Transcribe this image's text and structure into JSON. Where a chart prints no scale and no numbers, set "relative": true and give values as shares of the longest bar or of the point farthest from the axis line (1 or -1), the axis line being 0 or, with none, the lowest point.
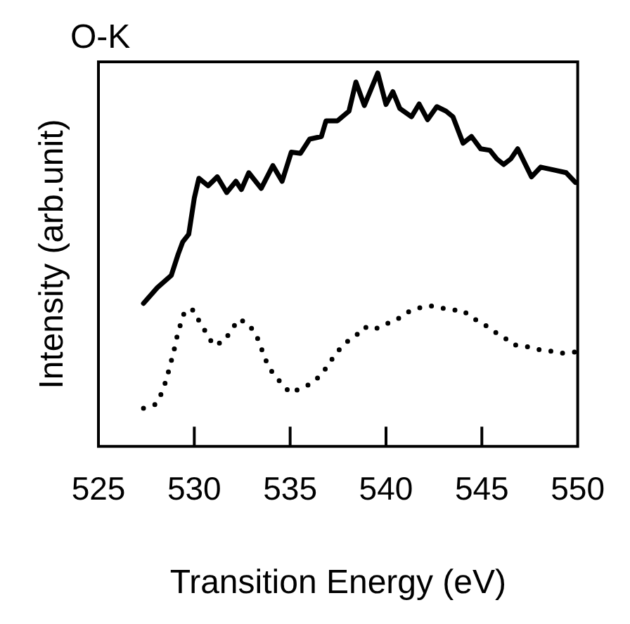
{
  "chart_data": {
    "type": "line",
    "title": "O-K",
    "xlabel": "Transition Energy (eV)",
    "ylabel": "Intensity (arb.unit)",
    "relative": true,
    "xlim": [
      525,
      550
    ],
    "xticks": [
      525,
      530,
      535,
      540,
      545,
      550
    ],
    "grid": false,
    "legend": false,
    "marker": "none",
    "series": [
      {
        "color": "#000000",
        "line_style": "solid",
        "x": [
          527.35,
          528.07,
          528.8,
          529.16,
          529.4,
          529.71,
          530.0,
          530.24,
          530.72,
          531.2,
          531.69,
          532.17,
          532.46,
          532.84,
          533.49,
          534.1,
          534.58,
          535.06,
          535.54,
          536.02,
          536.63,
          536.87,
          537.47,
          538.07,
          538.43,
          538.87,
          539.57,
          540.0,
          540.36,
          540.72,
          541.33,
          541.73,
          542.17,
          542.65,
          543.13,
          543.49,
          544.02,
          544.46,
          544.94,
          545.42,
          545.78,
          546.14,
          546.51,
          546.87,
          547.59,
          548.07,
          548.8,
          549.4,
          549.88
        ],
        "values": [
          0.383,
          0.425,
          0.458,
          0.515,
          0.548,
          0.568,
          0.665,
          0.718,
          0.698,
          0.722,
          0.68,
          0.71,
          0.688,
          0.733,
          0.691,
          0.752,
          0.71,
          0.788,
          0.785,
          0.823,
          0.83,
          0.872,
          0.872,
          0.898,
          0.976,
          0.913,
          1.0,
          0.916,
          0.95,
          0.905,
          0.883,
          0.917,
          0.875,
          0.91,
          0.898,
          0.883,
          0.812,
          0.83,
          0.797,
          0.793,
          0.77,
          0.755,
          0.77,
          0.797,
          0.722,
          0.748,
          0.74,
          0.733,
          0.707
        ]
      },
      {
        "color": "#000000",
        "line_style": "dotted",
        "x": [
          527.35,
          528.0,
          528.31,
          528.55,
          528.92,
          529.08,
          529.28,
          529.52,
          529.95,
          530.29,
          530.67,
          531.01,
          531.57,
          531.93,
          532.34,
          532.84,
          533.25,
          533.76,
          534.1,
          534.58,
          535.01,
          535.54,
          536.1,
          536.63,
          536.99,
          537.42,
          537.9,
          538.39,
          538.87,
          539.35,
          539.93,
          540.48,
          541.04,
          541.57,
          542.24,
          542.82,
          543.37,
          543.98,
          544.51,
          545.06,
          545.59,
          546.14,
          546.63,
          547.23,
          547.83,
          548.43,
          549.04,
          549.57,
          550.0
        ],
        "values": [
          0.102,
          0.113,
          0.144,
          0.18,
          0.252,
          0.29,
          0.327,
          0.365,
          0.365,
          0.332,
          0.3,
          0.27,
          0.282,
          0.312,
          0.341,
          0.327,
          0.296,
          0.227,
          0.195,
          0.167,
          0.143,
          0.155,
          0.168,
          0.192,
          0.219,
          0.251,
          0.278,
          0.294,
          0.32,
          0.312,
          0.327,
          0.336,
          0.357,
          0.369,
          0.377,
          0.372,
          0.365,
          0.365,
          0.344,
          0.329,
          0.309,
          0.293,
          0.272,
          0.269,
          0.26,
          0.257,
          0.249,
          0.251,
          0.254
        ]
      }
    ]
  }
}
